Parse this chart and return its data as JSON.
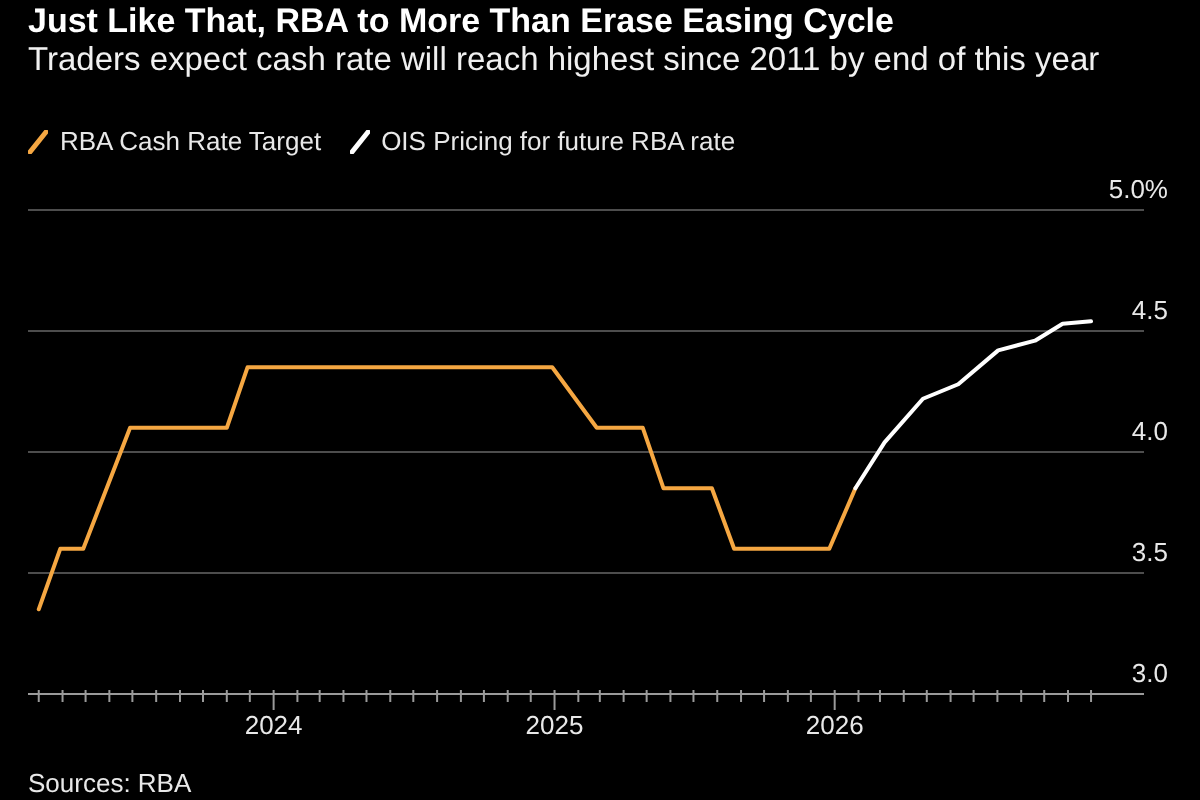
{
  "chart_data": {
    "type": "line",
    "title": "Just Like That, RBA to More Than Erase Easing Cycle",
    "subtitle": "Traders expect cash rate will reach highest since 2011 by end of this year",
    "annotations": [
      "Sources: RBA"
    ],
    "series": [
      {
        "name": "RBA Cash Rate Target",
        "color": "#f5a742",
        "x": [
          "2023-03-01",
          "2023-03-29",
          "2023-04-28",
          "2023-06-28",
          "2023-11-01",
          "2023-11-28",
          "2024-12-29",
          "2025-02-25",
          "2025-04-26",
          "2025-05-23",
          "2025-07-25",
          "2025-08-23",
          "2025-12-25",
          "2026-01-28"
        ],
        "values": [
          3.35,
          3.6,
          3.6,
          4.1,
          4.1,
          4.35,
          4.35,
          4.1,
          4.1,
          3.85,
          3.85,
          3.6,
          3.6,
          3.85
        ]
      },
      {
        "name": "OIS Pricing for future RBA rate",
        "color": "#ffffff",
        "x": [
          "2026-01-28",
          "2026-03-07",
          "2026-04-26",
          "2026-06-11",
          "2026-08-02",
          "2026-09-19",
          "2026-10-25",
          "2026-12-01"
        ],
        "values": [
          3.85,
          4.04,
          4.22,
          4.28,
          4.42,
          4.46,
          4.53,
          4.54
        ]
      }
    ],
    "xlim": [
      "2023-02-15",
      "2027-02-08"
    ],
    "xticks": [
      {
        "value": "2023-03",
        "label": null
      },
      {
        "value": "2023-04",
        "label": null
      },
      {
        "value": "2023-05",
        "label": null
      },
      {
        "value": "2023-06",
        "label": null
      },
      {
        "value": "2023-07",
        "label": null
      },
      {
        "value": "2023-08",
        "label": null
      },
      {
        "value": "2023-09",
        "label": null
      },
      {
        "value": "2023-10",
        "label": null
      },
      {
        "value": "2023-11",
        "label": null
      },
      {
        "value": "2023-12",
        "label": null
      },
      "2024",
      {
        "value": "2024-02",
        "label": null
      },
      {
        "value": "2024-03",
        "label": null
      },
      {
        "value": "2024-04",
        "label": null
      },
      {
        "value": "2024-05",
        "label": null
      },
      {
        "value": "2024-06",
        "label": null
      },
      {
        "value": "2024-07",
        "label": null
      },
      {
        "value": "2024-08",
        "label": null
      },
      {
        "value": "2024-09",
        "label": null
      },
      {
        "value": "2024-10",
        "label": null
      },
      {
        "value": "2024-11",
        "label": null
      },
      {
        "value": "2024-12",
        "label": null
      },
      "2025",
      {
        "value": "2025-02",
        "label": null
      },
      {
        "value": "2025-03",
        "label": null
      },
      {
        "value": "2025-04",
        "label": null
      },
      {
        "value": "2025-05",
        "label": null
      },
      {
        "value": "2025-06",
        "label": null
      },
      {
        "value": "2025-07",
        "label": null
      },
      {
        "value": "2025-08",
        "label": null
      },
      {
        "value": "2025-09",
        "label": null
      },
      {
        "value": "2025-10",
        "label": null
      },
      {
        "value": "2025-11",
        "label": null
      },
      {
        "value": "2025-12",
        "label": null
      },
      "2026",
      {
        "value": "2026-02",
        "label": null
      },
      {
        "value": "2026-03",
        "label": null
      },
      {
        "value": "2026-04",
        "label": null
      },
      {
        "value": "2026-05",
        "label": null
      },
      {
        "value": "2026-06",
        "label": null
      },
      {
        "value": "2026-07",
        "label": null
      },
      {
        "value": "2026-08",
        "label": null
      },
      {
        "value": "2026-09",
        "label": null
      },
      {
        "value": "2026-10",
        "label": null
      },
      {
        "value": "2026-11",
        "label": null
      },
      {
        "value": "2026-12",
        "label": null
      }
    ],
    "ylim": [
      3,
      5
    ],
    "yticks": [
      {
        "value": 3,
        "label": "3.0"
      },
      3.5,
      {
        "value": 4,
        "label": "4.0"
      },
      4.5,
      {
        "value": 5,
        "label": "5.0%"
      }
    ],
    "grid": "y",
    "legend": "top left",
    "marker": "none",
    "line_style": "solid"
  }
}
